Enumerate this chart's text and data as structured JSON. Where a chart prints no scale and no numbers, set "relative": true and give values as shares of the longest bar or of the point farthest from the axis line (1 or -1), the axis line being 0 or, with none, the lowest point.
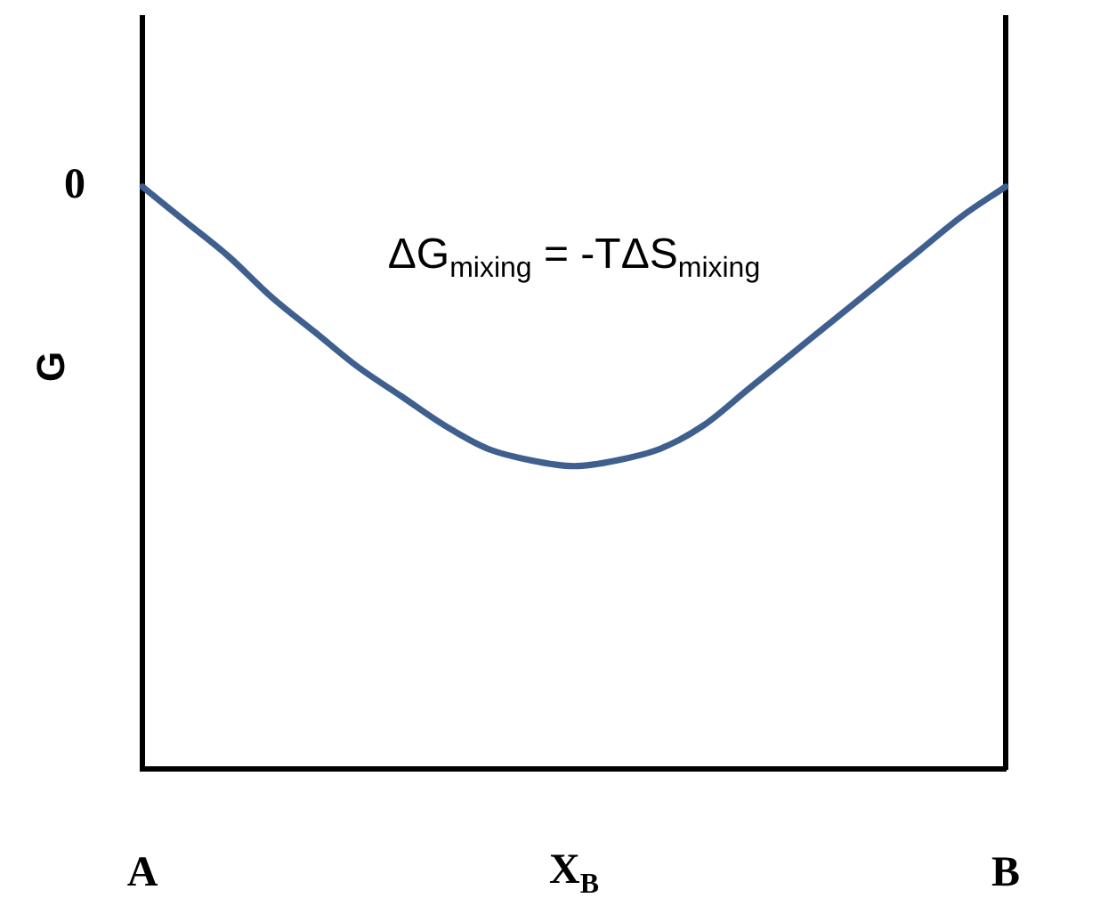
{
  "chart_data": {
    "type": "line",
    "relative": true,
    "xlabel": "X$_{B}$",
    "ylabel": "G",
    "categories": [
      "A",
      null,
      null,
      null,
      null,
      null,
      null,
      null,
      null,
      null,
      null,
      null,
      null,
      null,
      null,
      null,
      null,
      null,
      null,
      null,
      "B"
    ],
    "series": [
      {
        "color": "#3f5f8f",
        "values": [
          1,
          0.94,
          0.88,
          0.81,
          0.75,
          0.69,
          0.64,
          0.59,
          0.55,
          0.53,
          0.52,
          0.53,
          0.55,
          0.59,
          0.65,
          0.71,
          0.77,
          0.83,
          0.89,
          0.95,
          1
        ]
      }
    ],
    "annotations": [
      {
        "text": "0",
        "x": "A",
        "y": 1
      },
      "ΔG$_{mixing}$ = -TΔS$_{mixing}$"
    ],
    "legend": false,
    "grid": false,
    "marker": "none",
    "line_style": "solid"
  }
}
